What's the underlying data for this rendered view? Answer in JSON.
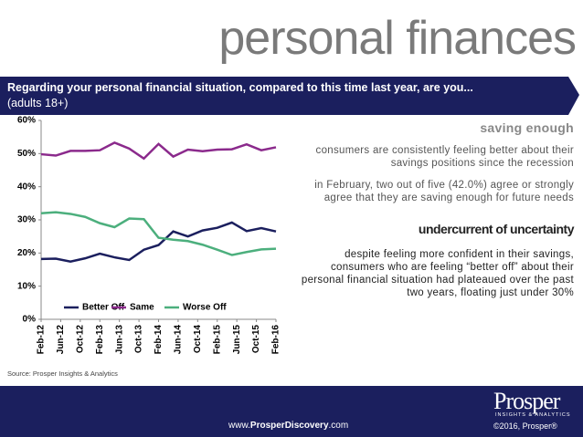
{
  "header": {
    "title": "personal finances",
    "question": "Regarding your personal financial situation, compared to this time last year, are you...",
    "base": "(adults 18+)"
  },
  "chart_data": {
    "type": "line",
    "xticks": [
      "Feb-12",
      "Jun-12",
      "Oct-12",
      "Feb-13",
      "Jun-13",
      "Oct-13",
      "Feb-14",
      "Jun-14",
      "Oct-14",
      "Feb-15",
      "Jun-15",
      "Oct-15",
      "Feb-16"
    ],
    "ylim": [
      0,
      60
    ],
    "yticks": [
      {
        "value": 0,
        "label": "0%"
      },
      {
        "value": 10,
        "label": "10%"
      },
      {
        "value": 20,
        "label": "20%"
      },
      {
        "value": 30,
        "label": "30%"
      },
      {
        "value": 40,
        "label": "40%"
      },
      {
        "value": 50,
        "label": "50%"
      },
      {
        "value": 60,
        "label": "60%"
      }
    ],
    "legend": "bottom",
    "series": [
      {
        "name": "Better Off",
        "color": "#1b1f5e",
        "values": [
          18.2,
          18.3,
          17.4,
          18.4,
          19.8,
          18.7,
          17.9,
          21.0,
          22.4,
          26.5,
          25.0,
          26.8,
          27.6,
          29.2,
          26.6,
          27.5,
          26.5
        ]
      },
      {
        "name": "Same",
        "color": "#8b2a8c",
        "values": [
          49.8,
          49.4,
          50.8,
          50.8,
          51.0,
          53.3,
          51.5,
          48.5,
          52.9,
          49.1,
          51.2,
          50.7,
          51.2,
          51.3,
          52.8,
          51.0,
          51.9
        ]
      },
      {
        "name": "Worse Off",
        "color": "#4caf7d",
        "values": [
          32.0,
          32.3,
          31.8,
          30.9,
          29.0,
          27.8,
          30.4,
          30.2,
          24.6,
          24.0,
          23.6,
          22.5,
          21.0,
          19.4,
          20.3,
          21.1,
          21.3
        ]
      }
    ]
  },
  "source": "Source: Prosper Insights & Analytics",
  "sidebar": {
    "heading1": "saving enough",
    "para1": "consumers are consistently feeling better about their savings positions since the recession",
    "para2": "in February, two out of five (42.0%) agree or strongly agree that they are saving enough for future needs",
    "heading2": "undercurrent of uncertainty",
    "para3": "despite feeling more confident in their savings, consumers who are feeling “better off” about their personal financial situation had plateaued over the past two years, floating just under 30%"
  },
  "footer": {
    "url_prefix": "www.",
    "url_brand": "ProsperDiscovery",
    "url_suffix": ".com",
    "logo": "Prosper",
    "logo_sub": "INSIGHTS & ANALYTICS",
    "copyright": "©2016, Prosper®"
  }
}
